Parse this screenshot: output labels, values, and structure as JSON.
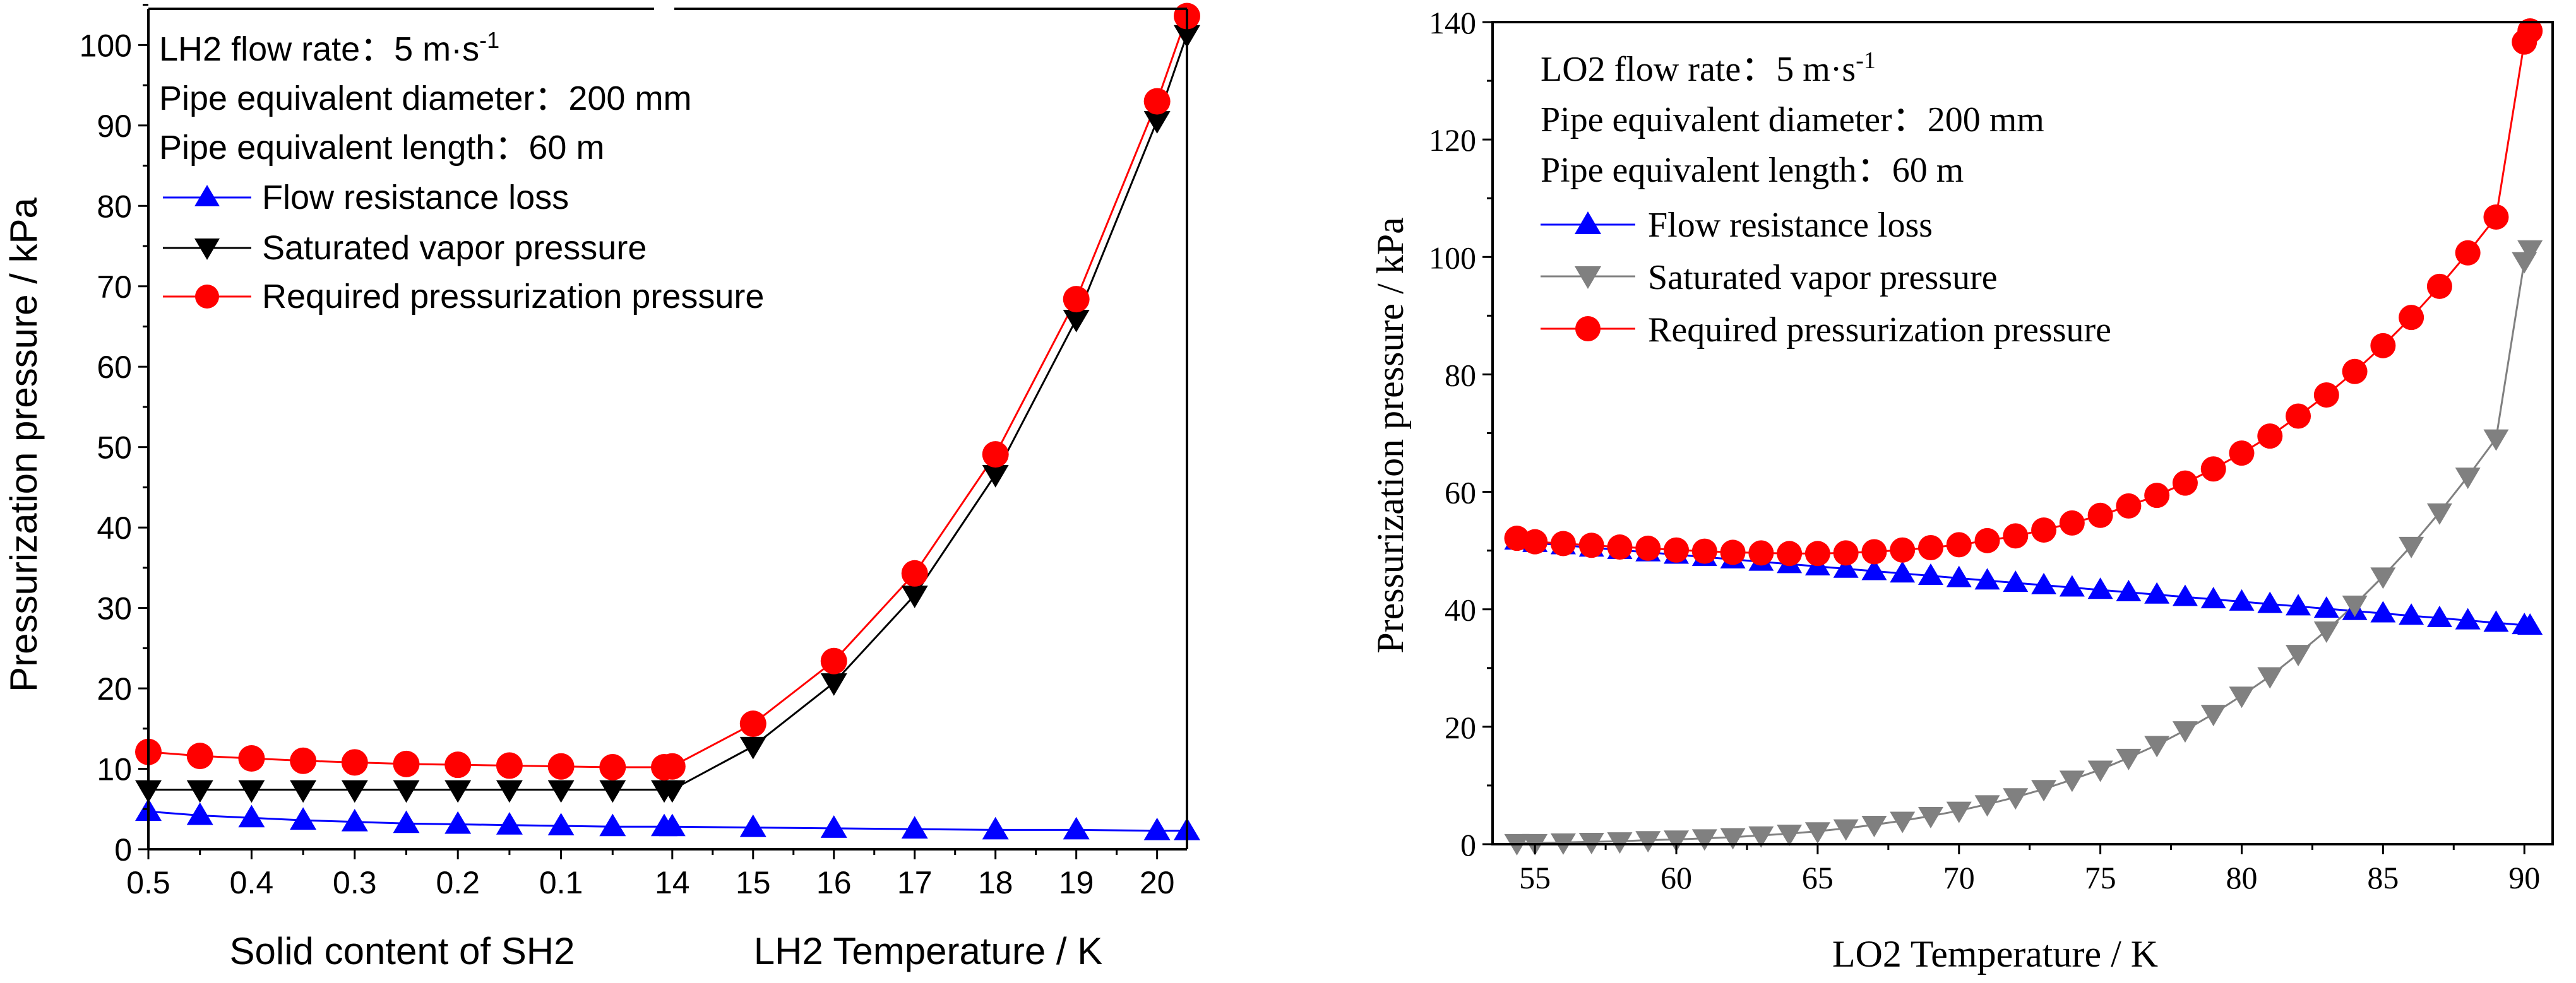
{
  "colors": {
    "flow": "#0000ff",
    "vapor_left": "#000000",
    "vapor_right": "#808080",
    "required": "#ff0000",
    "axis": "#000000"
  },
  "chart_data": [
    {
      "type": "line",
      "panel": "left",
      "ylabel": "Pressurization pressure / kPa",
      "ylim": [
        0,
        104.5
      ],
      "yticks": [
        "0",
        "10",
        "20",
        "30",
        "40",
        "50",
        "60",
        "70",
        "80",
        "90",
        "100"
      ],
      "grid": false,
      "legend_position": "top-left",
      "annotations": [
        "LH2 flow rate：5 m·s",
        "-1",
        "Pipe equivalent diameter：200 mm",
        "Pipe equivalent length：60 m"
      ],
      "segments": [
        {
          "xlabel": "Solid content of SH2",
          "x_reversed": true,
          "xlim": [
            0.5,
            0.0
          ],
          "xticks": [
            "0.5",
            "0.4",
            "0.3",
            "0.2",
            "0.1"
          ],
          "x": [
            0.5,
            0.45,
            0.4,
            0.35,
            0.3,
            0.25,
            0.2,
            0.15,
            0.1,
            0.05,
            0.0
          ],
          "series": [
            {
              "name": "Flow resistance loss",
              "values": [
                4.7,
                4.2,
                3.9,
                3.6,
                3.4,
                3.2,
                3.1,
                3.0,
                2.9,
                2.8,
                2.8
              ]
            },
            {
              "name": "Saturated vapor pressure",
              "values": [
                7.4,
                7.4,
                7.4,
                7.4,
                7.4,
                7.4,
                7.4,
                7.4,
                7.4,
                7.4,
                7.4
              ]
            },
            {
              "name": "Required pressurization pressure",
              "values": [
                12.1,
                11.6,
                11.3,
                11.0,
                10.8,
                10.6,
                10.5,
                10.4,
                10.3,
                10.2,
                10.2
              ]
            }
          ]
        },
        {
          "xlabel": "LH2 Temperature / K",
          "x_reversed": false,
          "xlim": [
            13.9,
            20.37
          ],
          "xticks": [
            "14",
            "15",
            "16",
            "17",
            "18",
            "19",
            "20"
          ],
          "x": [
            14.0,
            15.0,
            16.0,
            17.0,
            18.0,
            19.0,
            20.0,
            20.37
          ],
          "series": [
            {
              "name": "Flow resistance loss",
              "values": [
                2.8,
                2.7,
                2.6,
                2.5,
                2.4,
                2.4,
                2.3,
                2.3
              ]
            },
            {
              "name": "Saturated vapor pressure",
              "values": [
                7.4,
                12.8,
                20.7,
                31.6,
                46.6,
                65.9,
                90.6,
                101.3
              ]
            },
            {
              "name": "Required pressurization pressure",
              "values": [
                10.3,
                15.6,
                23.4,
                34.3,
                49.1,
                68.4,
                93.0,
                103.6
              ]
            }
          ]
        }
      ]
    },
    {
      "type": "line",
      "panel": "right",
      "xlabel": "LO2 Temperature / K",
      "ylabel": "Pressurization pressure / kPa",
      "xlim": [
        53.5,
        91.0
      ],
      "ylim": [
        0,
        140
      ],
      "xticks": [
        "55",
        "60",
        "65",
        "70",
        "75",
        "80",
        "85",
        "90"
      ],
      "yticks": [
        "0",
        "20",
        "40",
        "60",
        "80",
        "100",
        "120",
        "140"
      ],
      "grid": false,
      "legend_position": "top-left",
      "annotations": [
        "LO2 flow rate：5 m·s",
        "-1",
        "Pipe equivalent diameter：200 mm",
        "Pipe equivalent length：60 m"
      ],
      "x": [
        54.36,
        55,
        56,
        57,
        58,
        59,
        60,
        61,
        62,
        63,
        64,
        65,
        66,
        67,
        68,
        69,
        70,
        71,
        72,
        73,
        74,
        75,
        76,
        77,
        78,
        79,
        80,
        81,
        82,
        83,
        84,
        85,
        86,
        87,
        88,
        89,
        90,
        90.2
      ],
      "series": [
        {
          "name": "Flow resistance loss",
          "values": [
            51.7,
            51.3,
            50.9,
            50.5,
            50.1,
            49.7,
            49.3,
            48.9,
            48.5,
            48.1,
            47.7,
            47.3,
            46.9,
            46.5,
            46.1,
            45.7,
            45.3,
            44.9,
            44.5,
            44.1,
            43.7,
            43.3,
            42.9,
            42.5,
            42.1,
            41.7,
            41.3,
            40.9,
            40.5,
            40.1,
            39.7,
            39.3,
            38.9,
            38.5,
            38.1,
            37.7,
            37.3,
            37.2
          ]
        },
        {
          "name": "Saturated vapor pressure",
          "values": [
            0.2,
            0.2,
            0.3,
            0.4,
            0.5,
            0.7,
            0.8,
            1.0,
            1.2,
            1.5,
            1.8,
            2.2,
            2.7,
            3.3,
            4.0,
            4.8,
            5.7,
            6.8,
            8.0,
            9.4,
            11.0,
            12.7,
            14.7,
            16.9,
            19.4,
            22.2,
            25.3,
            28.6,
            32.4,
            36.4,
            40.8,
            45.6,
            50.8,
            56.5,
            62.6,
            69.1,
            99.3,
            101.3
          ]
        },
        {
          "name": "Required pressurization pressure",
          "values": [
            52.1,
            51.5,
            51.2,
            50.9,
            50.6,
            50.4,
            50.1,
            49.9,
            49.7,
            49.6,
            49.5,
            49.5,
            49.6,
            49.8,
            50.1,
            50.5,
            51.0,
            51.7,
            52.5,
            53.5,
            54.7,
            56.0,
            57.6,
            59.4,
            61.5,
            63.9,
            66.6,
            69.5,
            72.9,
            76.5,
            80.5,
            84.9,
            89.7,
            95.0,
            100.7,
            106.8,
            136.6,
            138.5
          ]
        }
      ]
    }
  ]
}
